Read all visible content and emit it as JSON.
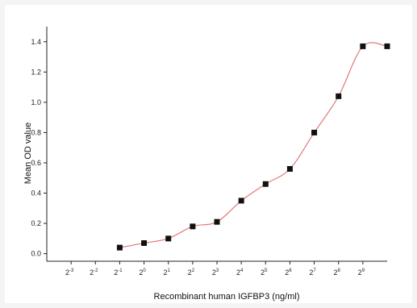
{
  "chart_data": {
    "type": "scatter",
    "title": "",
    "xlabel": "Recombinant human IGFBP3 (ng/ml)",
    "ylabel": "Mean OD value",
    "x_scale": "log2",
    "x_ticks": [
      {
        "exp": -3,
        "base": "2",
        "sup": "-3"
      },
      {
        "exp": -2,
        "base": "2",
        "sup": "-2"
      },
      {
        "exp": -1,
        "base": "2",
        "sup": "-1"
      },
      {
        "exp": 0,
        "base": "2",
        "sup": "0"
      },
      {
        "exp": 1,
        "base": "2",
        "sup": "1"
      },
      {
        "exp": 2,
        "base": "2",
        "sup": "2"
      },
      {
        "exp": 3,
        "base": "2",
        "sup": "3"
      },
      {
        "exp": 4,
        "base": "2",
        "sup": "4"
      },
      {
        "exp": 5,
        "base": "2",
        "sup": "5"
      },
      {
        "exp": 6,
        "base": "2",
        "sup": "6"
      },
      {
        "exp": 7,
        "base": "2",
        "sup": "7"
      },
      {
        "exp": 8,
        "base": "2",
        "sup": "8"
      },
      {
        "exp": 9,
        "base": "2",
        "sup": "9"
      }
    ],
    "y_ticks": [
      "0.0",
      "0.2",
      "0.4",
      "0.6",
      "0.8",
      "1.0",
      "1.2",
      "1.4"
    ],
    "xlim_exp": [
      -4,
      10
    ],
    "ylim": [
      -0.05,
      1.5
    ],
    "grid": false,
    "series": [
      {
        "marker": "square",
        "marker_color": "#111111",
        "line_color": "#e07a7a",
        "points": [
          {
            "x_exp": -1,
            "y": 0.04
          },
          {
            "x_exp": 0,
            "y": 0.07
          },
          {
            "x_exp": 1,
            "y": 0.1
          },
          {
            "x_exp": 2,
            "y": 0.18
          },
          {
            "x_exp": 3,
            "y": 0.21
          },
          {
            "x_exp": 4,
            "y": 0.35
          },
          {
            "x_exp": 5,
            "y": 0.46
          },
          {
            "x_exp": 6,
            "y": 0.56
          },
          {
            "x_exp": 7,
            "y": 0.8
          },
          {
            "x_exp": 8,
            "y": 1.04
          },
          {
            "x_exp": 9,
            "y": 1.37
          },
          {
            "x_exp": 10,
            "y": 1.37
          }
        ]
      }
    ]
  }
}
